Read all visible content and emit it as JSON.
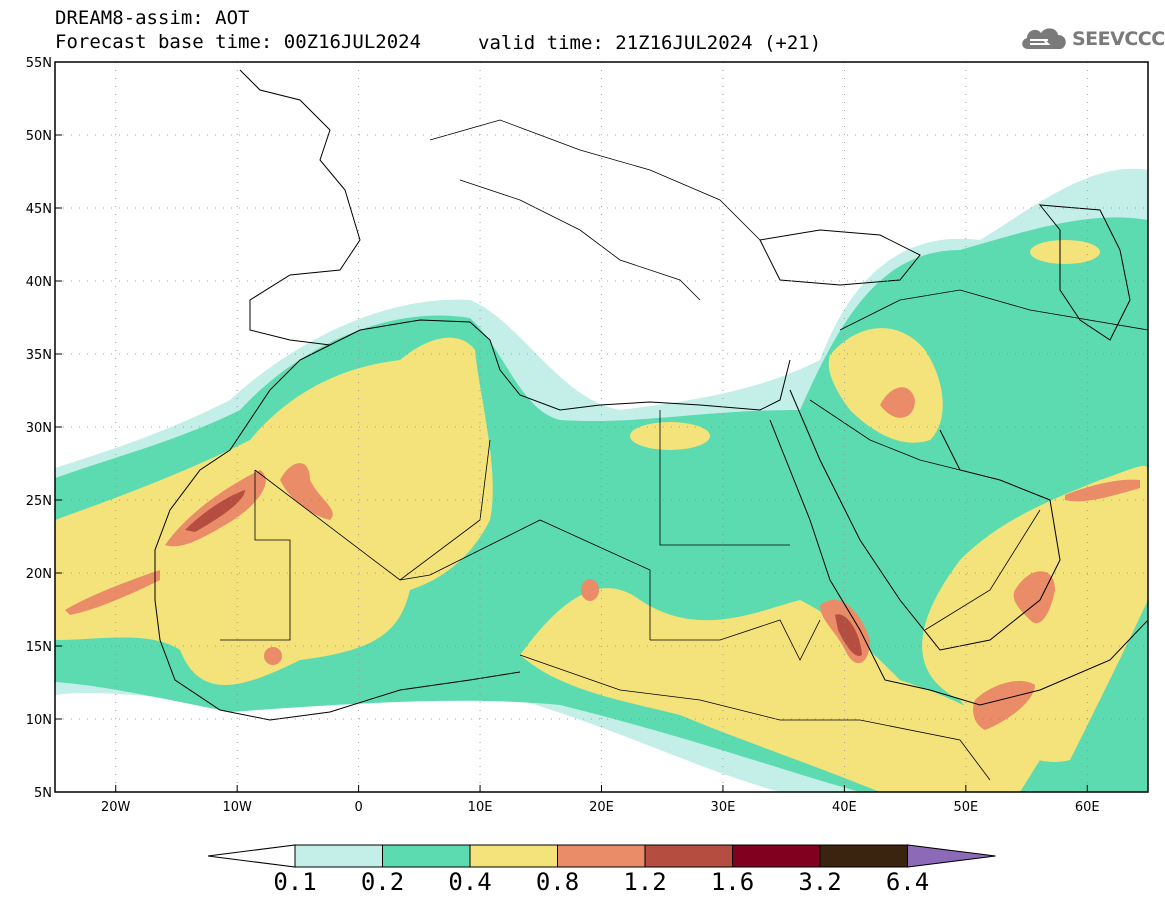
{
  "title": {
    "line1": "DREAM8-assim: AOT",
    "line2": "Forecast base time: 00Z16JUL2024",
    "valid": "valid time: 21Z16JUL2024 (+21)"
  },
  "logo": {
    "text": "SEEVCCC",
    "icon": "cloud-icon",
    "color": "#7a7a7a"
  },
  "map": {
    "variable": "Aerosol Optical Thickness",
    "lon_range": [
      -25,
      65
    ],
    "lat_range": [
      5,
      55
    ],
    "lat_ticks": [
      {
        "value": 55,
        "label": "55N"
      },
      {
        "value": 50,
        "label": "50N"
      },
      {
        "value": 45,
        "label": "45N"
      },
      {
        "value": 40,
        "label": "40N"
      },
      {
        "value": 35,
        "label": "35N"
      },
      {
        "value": 30,
        "label": "30N"
      },
      {
        "value": 25,
        "label": "25N"
      },
      {
        "value": 20,
        "label": "20N"
      },
      {
        "value": 15,
        "label": "15N"
      },
      {
        "value": 10,
        "label": "10N"
      },
      {
        "value": 5,
        "label": "5N"
      }
    ],
    "lon_ticks": [
      {
        "value": -20,
        "label": "20W"
      },
      {
        "value": -10,
        "label": "10W"
      },
      {
        "value": 0,
        "label": "0"
      },
      {
        "value": 10,
        "label": "10E"
      },
      {
        "value": 20,
        "label": "20E"
      },
      {
        "value": 30,
        "label": "30E"
      },
      {
        "value": 40,
        "label": "40E"
      },
      {
        "value": 50,
        "label": "50E"
      },
      {
        "value": 60,
        "label": "60E"
      }
    ],
    "grid": true
  },
  "legend": {
    "labels": [
      "0.1",
      "0.2",
      "0.4",
      "0.8",
      "1.2",
      "1.6",
      "3.2",
      "6.4"
    ],
    "colors": [
      "#c4efe8",
      "#5cdbb0",
      "#f4e27a",
      "#ea8c68",
      "#b54e40",
      "#82001f",
      "#3a2410",
      "#8c6ab8"
    ],
    "under_color": "#ffffff"
  }
}
